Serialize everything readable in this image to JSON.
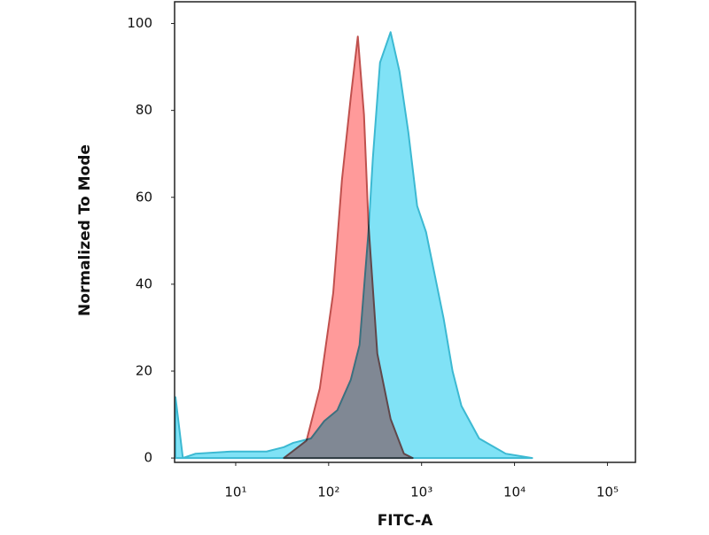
{
  "chart_data": {
    "type": "area",
    "xlabel": "FITC-A",
    "ylabel": "Normalized To Mode",
    "xscale": "log",
    "xlim": [
      2.2,
      200000
    ],
    "ylim": [
      -1,
      105
    ],
    "xticks": [
      {
        "value": 10,
        "label": "10¹"
      },
      {
        "value": 100,
        "label": "10²"
      },
      {
        "value": 1000,
        "label": "10³"
      },
      {
        "value": 10000,
        "label": "10⁴"
      },
      {
        "value": 100000,
        "label": "10⁵"
      }
    ],
    "yticks": [
      0,
      20,
      40,
      60,
      80,
      100
    ],
    "series": [
      {
        "color": "#3cb9d2",
        "fill": "#80e2f6",
        "x": [
          2.25,
          2.7,
          3.7,
          9,
          21.5,
          33,
          41.6,
          64.5,
          89.6,
          124,
          173,
          215,
          268,
          299,
          357,
          464,
          578,
          720,
          896,
          1117,
          1390,
          1730,
          2154,
          2683,
          4159,
          8036,
          15500
        ],
        "values": [
          14,
          0,
          1,
          1.5,
          1.5,
          2.5,
          3.5,
          4.5,
          8.5,
          11,
          18,
          26,
          52,
          69,
          91,
          98,
          89,
          75,
          58,
          52,
          42,
          32,
          20,
          12,
          4.5,
          1,
          0
        ]
      },
      {
        "color": "#c0504d",
        "fill": "#ff9a9a",
        "x": [
          33,
          57.8,
          80.3,
          112,
          139,
          173,
          206,
          240,
          268,
          334,
          464,
          645,
          803
        ],
        "values": [
          0,
          4,
          16,
          38,
          64,
          83,
          97,
          79,
          54,
          24,
          9,
          1,
          0
        ]
      }
    ]
  }
}
